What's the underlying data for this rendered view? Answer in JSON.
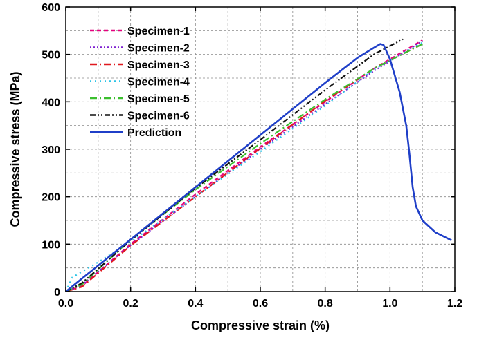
{
  "chart_data": {
    "type": "line",
    "xlabel": "Compressive strain (%)",
    "ylabel": "Compressive stress (MPa)",
    "xlim": [
      0,
      1.2
    ],
    "ylim": [
      0,
      600
    ],
    "xticks": [
      "0.0",
      "0.2",
      "0.4",
      "0.6",
      "0.8",
      "1.0",
      "1.2"
    ],
    "yticks": [
      "0",
      "100",
      "200",
      "300",
      "400",
      "500",
      "600"
    ],
    "grid": true,
    "legend_position": "top-left",
    "series": [
      {
        "name": "Specimen-1",
        "color": "#e6007e",
        "dash": "6,4",
        "points": [
          [
            0,
            0
          ],
          [
            0.05,
            12
          ],
          [
            0.2,
            100
          ],
          [
            0.4,
            205
          ],
          [
            0.6,
            305
          ],
          [
            0.8,
            400
          ],
          [
            0.95,
            470
          ],
          [
            1.1,
            530
          ]
        ]
      },
      {
        "name": "Specimen-2",
        "color": "#7d1fd0",
        "dash": "2,3",
        "points": [
          [
            0,
            0
          ],
          [
            0.05,
            14
          ],
          [
            0.2,
            98
          ],
          [
            0.4,
            200
          ],
          [
            0.6,
            300
          ],
          [
            0.8,
            395
          ],
          [
            0.95,
            465
          ],
          [
            1.1,
            528
          ]
        ]
      },
      {
        "name": "Specimen-3",
        "color": "#e0191f",
        "dash": "10,4,2,4",
        "points": [
          [
            0,
            0
          ],
          [
            0.05,
            10
          ],
          [
            0.2,
            97
          ],
          [
            0.4,
            200
          ],
          [
            0.6,
            302
          ],
          [
            0.8,
            402
          ],
          [
            0.95,
            470
          ],
          [
            1.1,
            522
          ]
        ]
      },
      {
        "name": "Specimen-4",
        "color": "#2bc3e6",
        "dash": "2,5",
        "points": [
          [
            0,
            0
          ],
          [
            0.02,
            30
          ],
          [
            0.1,
            62
          ],
          [
            0.2,
            105
          ],
          [
            0.4,
            200
          ],
          [
            0.6,
            295
          ],
          [
            0.8,
            392
          ],
          [
            0.95,
            468
          ],
          [
            1.1,
            525
          ]
        ]
      },
      {
        "name": "Specimen-5",
        "color": "#3bbf2e",
        "dash": "10,4,2,4",
        "points": [
          [
            0,
            0
          ],
          [
            0.05,
            15
          ],
          [
            0.2,
            110
          ],
          [
            0.4,
            215
          ],
          [
            0.6,
            312
          ],
          [
            0.8,
            405
          ],
          [
            0.95,
            470
          ],
          [
            1.1,
            522
          ]
        ]
      },
      {
        "name": "Specimen-6",
        "color": "#111111",
        "dash": "8,3,2,3,2,3",
        "points": [
          [
            0,
            0
          ],
          [
            0.05,
            18
          ],
          [
            0.2,
            108
          ],
          [
            0.4,
            218
          ],
          [
            0.6,
            320
          ],
          [
            0.8,
            425
          ],
          [
            0.95,
            500
          ],
          [
            1.04,
            532
          ]
        ]
      },
      {
        "name": "Prediction",
        "color": "#1f3fc8",
        "dash": "",
        "points": [
          [
            0,
            0
          ],
          [
            0.1,
            55
          ],
          [
            0.2,
            110
          ],
          [
            0.4,
            220
          ],
          [
            0.6,
            330
          ],
          [
            0.8,
            440
          ],
          [
            0.9,
            493
          ],
          [
            0.95,
            514
          ],
          [
            0.97,
            522
          ],
          [
            0.98,
            520
          ],
          [
            1.0,
            490
          ],
          [
            1.03,
            420
          ],
          [
            1.05,
            350
          ],
          [
            1.06,
            290
          ],
          [
            1.07,
            220
          ],
          [
            1.08,
            180
          ],
          [
            1.1,
            150
          ],
          [
            1.14,
            125
          ],
          [
            1.19,
            108
          ]
        ]
      }
    ]
  }
}
